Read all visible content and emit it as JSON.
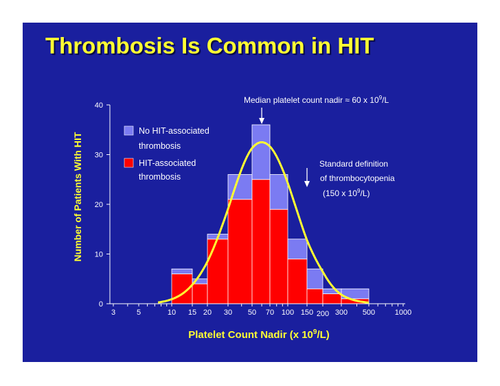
{
  "colors": {
    "background": "#1a1f9e",
    "no_hit": "#7b7bf2",
    "hit": "#ff0000",
    "extra": "#37c6f4",
    "curve": "#ffff33",
    "axis": "#ffffff",
    "title": "#ffff33",
    "annotation": "#ffffff"
  },
  "chart_data": {
    "type": "bar",
    "stacked": true,
    "title": "Thrombosis Is Common in HIT",
    "xlabel": "Platelet Count Nadir (x 10⁹/L)",
    "ylabel": "Number of Patients With HIT",
    "ylim": [
      0,
      40
    ],
    "yticks": [
      "0",
      "10",
      "20",
      "30",
      "40"
    ],
    "x_scale": "log",
    "xlim": [
      3,
      1000
    ],
    "xticks": [
      "3",
      "5",
      "10",
      "15",
      "20",
      "30",
      "50",
      "70",
      "100",
      "150",
      "200",
      "300",
      "500",
      "1000"
    ],
    "bins": [
      {
        "from": 10,
        "to": 15
      },
      {
        "from": 15,
        "to": 20
      },
      {
        "from": 20,
        "to": 30
      },
      {
        "from": 30,
        "to": 50
      },
      {
        "from": 50,
        "to": 70
      },
      {
        "from": 70,
        "to": 100
      },
      {
        "from": 100,
        "to": 150
      },
      {
        "from": 150,
        "to": 200
      },
      {
        "from": 200,
        "to": 300
      },
      {
        "from": 300,
        "to": 500
      }
    ],
    "series": [
      {
        "name": "HIT-associated thrombosis",
        "color": "#ff0000",
        "values": [
          6,
          4,
          13,
          21,
          25,
          19,
          9,
          3,
          2,
          1
        ]
      },
      {
        "name": "No HIT-associated thrombosis",
        "color": "#7b7bf2",
        "values": [
          1,
          1,
          1,
          5,
          11,
          7,
          4,
          4,
          1,
          2
        ]
      }
    ],
    "extra_segment": {
      "bin_index": 2,
      "value": 0.8,
      "color": "#37c6f4"
    },
    "curve": {
      "label": "",
      "peak_x": 60,
      "peak_y": 32.5
    },
    "annotations": {
      "median": "Median platelet count nadir ≈ 60 x 10⁹/L",
      "median_x": 60,
      "standard_line1": "Standard definition",
      "standard_line2": "of thrombocytopenia",
      "standard_line3": "(150 x 10⁹/L)",
      "standard_x": 150
    },
    "legend_placement": "top-left",
    "grid": false
  }
}
